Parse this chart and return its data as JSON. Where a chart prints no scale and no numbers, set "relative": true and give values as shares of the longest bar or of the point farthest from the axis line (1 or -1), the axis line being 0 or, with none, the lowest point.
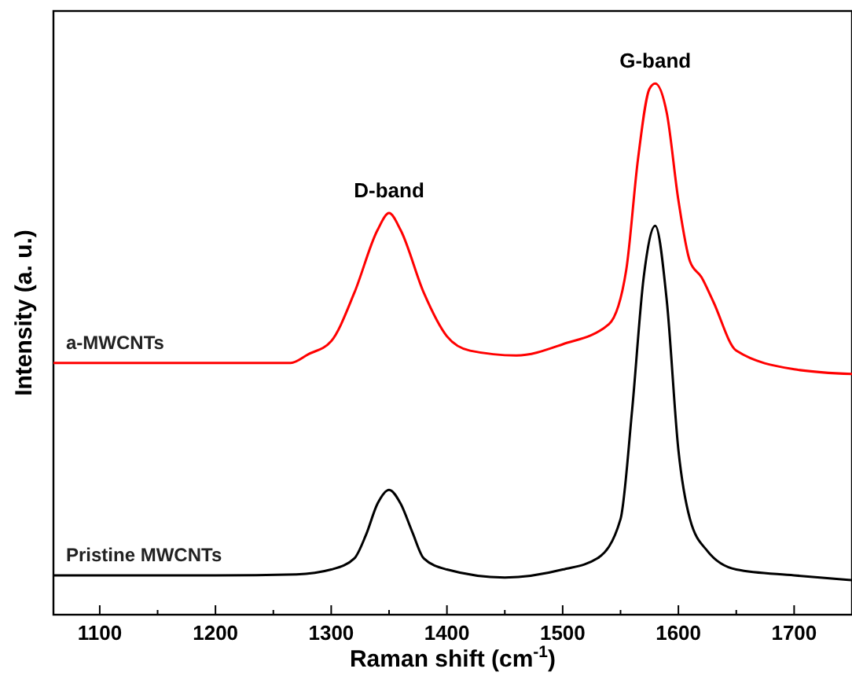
{
  "chart_data": {
    "type": "line",
    "relative": true,
    "xlabel": "Raman shift (cm$^{-1}$)",
    "ylabel": "Intensity (a. u.)",
    "xlim": [
      1060,
      1750
    ],
    "xticks": [
      1100,
      {
        "value": 1150,
        "label": null
      },
      1200,
      {
        "value": 1250,
        "label": null
      },
      1300,
      {
        "value": 1350,
        "label": null
      },
      1400,
      {
        "value": 1450,
        "label": null
      },
      1500,
      {
        "value": 1550,
        "label": null
      },
      1600,
      {
        "value": 1650,
        "label": null
      },
      1700
    ],
    "annotations": [
      {
        "text": "D-band",
        "x": 1350,
        "y": 0.756
      },
      {
        "text": "G-band",
        "x": 1580,
        "y": 1.0
      }
    ],
    "series": [
      {
        "name": "a-MWCNTs",
        "color": "#ff0000",
        "x": [
          1060,
          1200,
          1265,
          1280,
          1300,
          1320,
          1340,
          1350,
          1360,
          1380,
          1400,
          1420,
          1460,
          1500,
          1540,
          1555,
          1565,
          1575,
          1580,
          1590,
          1600,
          1610,
          1620,
          1630,
          1650,
          1700,
          1750
        ],
        "values": [
          0.474,
          0.474,
          0.474,
          0.49,
          0.515,
          0.606,
          0.724,
          0.756,
          0.724,
          0.606,
          0.524,
          0.497,
          0.488,
          0.509,
          0.547,
          0.65,
          0.856,
          0.99,
          1.0,
          0.944,
          0.78,
          0.665,
          0.635,
          0.59,
          0.497,
          0.462,
          0.453
        ]
      },
      {
        "name": "Pristine MWCNTs",
        "color": "#000000",
        "x": [
          1060,
          1200,
          1270,
          1300,
          1320,
          1330,
          1340,
          1350,
          1360,
          1370,
          1380,
          1400,
          1450,
          1500,
          1530,
          1550,
          1560,
          1570,
          1580,
          1590,
          1600,
          1610,
          1625,
          1650,
          1700,
          1750
        ],
        "values": [
          0.074,
          0.074,
          0.076,
          0.085,
          0.106,
          0.15,
          0.209,
          0.235,
          0.209,
          0.156,
          0.106,
          0.085,
          0.07,
          0.085,
          0.106,
          0.18,
          0.385,
          0.635,
          0.732,
          0.59,
          0.31,
          0.18,
          0.12,
          0.085,
          0.074,
          0.065
        ]
      }
    ]
  }
}
